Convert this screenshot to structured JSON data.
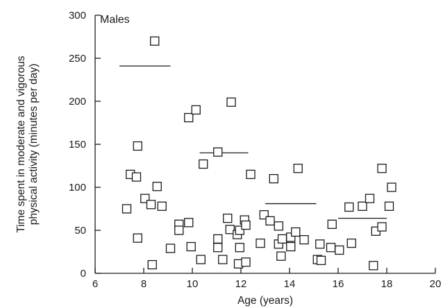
{
  "chart_data": {
    "type": "scatter",
    "title": "",
    "panel_label": "Males",
    "xlabel": "Age (years)",
    "ylabel_lines": [
      "Time spent in moderate and vigorous",
      "physical activity (minutes per day)"
    ],
    "xlim": [
      6,
      20
    ],
    "ylim": [
      0,
      300
    ],
    "x_ticks": [
      6,
      8,
      10,
      12,
      14,
      16,
      18,
      20
    ],
    "y_ticks": [
      0,
      50,
      100,
      150,
      200,
      250,
      300
    ],
    "grid": false,
    "marker": "open-square",
    "points": [
      {
        "x": 7.3,
        "y": 75
      },
      {
        "x": 7.45,
        "y": 115
      },
      {
        "x": 7.7,
        "y": 112
      },
      {
        "x": 7.75,
        "y": 148
      },
      {
        "x": 7.75,
        "y": 41
      },
      {
        "x": 8.05,
        "y": 87
      },
      {
        "x": 8.3,
        "y": 80
      },
      {
        "x": 8.35,
        "y": 10
      },
      {
        "x": 8.45,
        "y": 270
      },
      {
        "x": 8.55,
        "y": 101
      },
      {
        "x": 8.75,
        "y": 78
      },
      {
        "x": 9.1,
        "y": 29
      },
      {
        "x": 9.45,
        "y": 57
      },
      {
        "x": 9.45,
        "y": 50
      },
      {
        "x": 9.85,
        "y": 59
      },
      {
        "x": 9.85,
        "y": 181
      },
      {
        "x": 9.95,
        "y": 31
      },
      {
        "x": 10.15,
        "y": 190
      },
      {
        "x": 10.35,
        "y": 16
      },
      {
        "x": 10.45,
        "y": 127
      },
      {
        "x": 11.05,
        "y": 141
      },
      {
        "x": 11.05,
        "y": 40
      },
      {
        "x": 11.05,
        "y": 30
      },
      {
        "x": 11.25,
        "y": 16
      },
      {
        "x": 11.45,
        "y": 64
      },
      {
        "x": 11.55,
        "y": 51
      },
      {
        "x": 11.6,
        "y": 199
      },
      {
        "x": 11.85,
        "y": 45
      },
      {
        "x": 11.9,
        "y": 11
      },
      {
        "x": 11.95,
        "y": 50
      },
      {
        "x": 11.95,
        "y": 30
      },
      {
        "x": 12.15,
        "y": 62
      },
      {
        "x": 12.2,
        "y": 56
      },
      {
        "x": 12.2,
        "y": 13
      },
      {
        "x": 12.4,
        "y": 115
      },
      {
        "x": 12.8,
        "y": 35
      },
      {
        "x": 12.95,
        "y": 68
      },
      {
        "x": 13.2,
        "y": 61
      },
      {
        "x": 13.35,
        "y": 110
      },
      {
        "x": 13.55,
        "y": 55
      },
      {
        "x": 13.55,
        "y": 34
      },
      {
        "x": 13.65,
        "y": 20
      },
      {
        "x": 13.7,
        "y": 40
      },
      {
        "x": 14.05,
        "y": 42
      },
      {
        "x": 14.05,
        "y": 31
      },
      {
        "x": 14.25,
        "y": 48
      },
      {
        "x": 14.35,
        "y": 122
      },
      {
        "x": 14.6,
        "y": 39
      },
      {
        "x": 15.15,
        "y": 16
      },
      {
        "x": 15.25,
        "y": 34
      },
      {
        "x": 15.3,
        "y": 15
      },
      {
        "x": 15.7,
        "y": 30
      },
      {
        "x": 15.75,
        "y": 57
      },
      {
        "x": 16.05,
        "y": 27
      },
      {
        "x": 16.45,
        "y": 77
      },
      {
        "x": 16.55,
        "y": 35
      },
      {
        "x": 17.0,
        "y": 78
      },
      {
        "x": 17.3,
        "y": 87
      },
      {
        "x": 17.45,
        "y": 9
      },
      {
        "x": 17.55,
        "y": 49
      },
      {
        "x": 17.8,
        "y": 122
      },
      {
        "x": 17.8,
        "y": 54
      },
      {
        "x": 18.1,
        "y": 78
      },
      {
        "x": 18.2,
        "y": 100
      }
    ],
    "mean_lines": [
      {
        "x_start": 7.0,
        "x_end": 9.1,
        "y": 241
      },
      {
        "x_start": 10.3,
        "x_end": 12.3,
        "y": 140
      },
      {
        "x_start": 13.0,
        "x_end": 15.1,
        "y": 81
      },
      {
        "x_start": 16.0,
        "x_end": 18.0,
        "y": 64
      }
    ]
  }
}
